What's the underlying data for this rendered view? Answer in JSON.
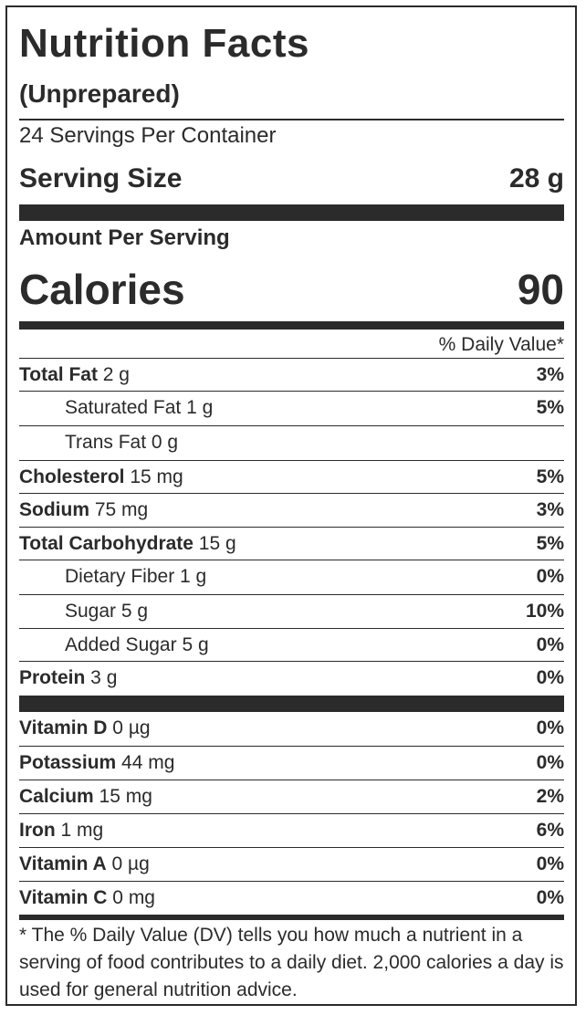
{
  "title": "Nutrition Facts",
  "subtitle": "(Unprepared)",
  "servings_per_container": "24 Servings Per Container",
  "serving_size": {
    "label": "Serving Size",
    "value": "28 g"
  },
  "amount_per_serving": "Amount Per Serving",
  "calories": {
    "label": "Calories",
    "value": "90"
  },
  "daily_value_header": "% Daily Value*",
  "nutrients": [
    {
      "name": "Total Fat",
      "amount": " 2 g",
      "dv": "3%"
    },
    {
      "name": "Saturated Fat",
      "amount": " 1 g",
      "dv": "5%"
    },
    {
      "name": "Trans Fat",
      "amount": " 0 g",
      "dv": ""
    },
    {
      "name": "Cholesterol",
      "amount": " 15 mg",
      "dv": "5%"
    },
    {
      "name": "Sodium",
      "amount": " 75 mg",
      "dv": "3%"
    },
    {
      "name": "Total Carbohydrate",
      "amount": " 15 g",
      "dv": "5%"
    },
    {
      "name": "Dietary Fiber",
      "amount": " 1 g",
      "dv": "0%"
    },
    {
      "name": "Sugar",
      "amount": " 5 g",
      "dv": "10%"
    },
    {
      "name": "Added Sugar",
      "amount": " 5 g",
      "dv": "0%"
    },
    {
      "name": "Protein",
      "amount": " 3 g",
      "dv": "0%"
    }
  ],
  "vitamins": [
    {
      "name": "Vitamin D",
      "amount": " 0 µg",
      "dv": "0%"
    },
    {
      "name": "Potassium",
      "amount": " 44 mg",
      "dv": "0%"
    },
    {
      "name": "Calcium",
      "amount": " 15 mg",
      "dv": "2%"
    },
    {
      "name": "Iron",
      "amount": " 1 mg",
      "dv": "6%"
    },
    {
      "name": "Vitamin A",
      "amount": " 0 µg",
      "dv": "0%"
    },
    {
      "name": "Vitamin C",
      "amount": " 0 mg",
      "dv": "0%"
    }
  ],
  "footnote": "* The % Daily Value (DV) tells you how much a nutrient in a serving of food contributes to a daily diet. 2,000 calories a day is used for general nutrition advice."
}
